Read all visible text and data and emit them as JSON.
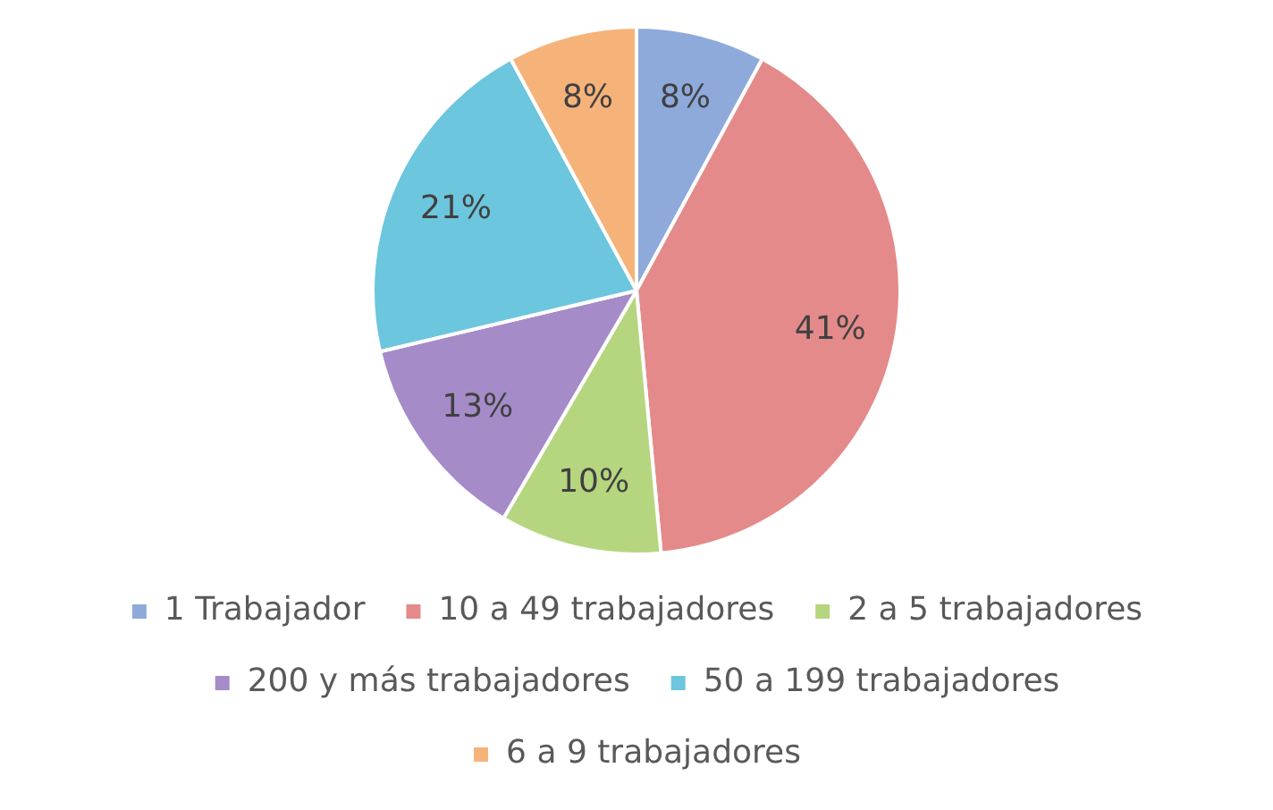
{
  "chart_data": {
    "type": "pie",
    "categories": [
      "1 Trabajador",
      "10 a 49 trabajadores",
      "2 a 5 trabajadores",
      "200 y más trabajadores",
      "50 a 199 trabajadores",
      "6 a 9 trabajadores"
    ],
    "values": [
      8,
      41,
      10,
      13,
      21,
      8
    ],
    "colors": [
      "#8eaadb",
      "#e48a8a",
      "#b5d67f",
      "#a58cc8",
      "#6cc6dd",
      "#f5b37a"
    ],
    "value_labels": [
      "8%",
      "41%",
      "10%",
      "13%",
      "21%",
      "8%"
    ],
    "legend": "bottom"
  }
}
